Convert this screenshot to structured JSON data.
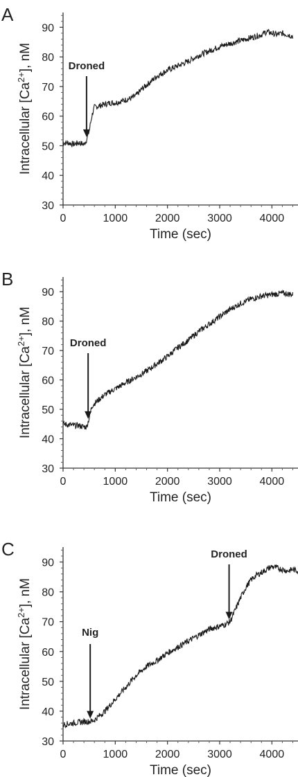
{
  "chart_data": [
    {
      "type": "line",
      "panel_label": "A",
      "xlabel": "Time (sec)",
      "ylabel": "Intracellular [Ca²⁺], nM",
      "xlim": [
        0,
        4500
      ],
      "ylim": [
        30,
        95
      ],
      "x_ticks": [
        0,
        1000,
        2000,
        3000,
        4000
      ],
      "y_ticks": [
        30,
        40,
        50,
        60,
        70,
        80,
        90
      ],
      "series": [
        {
          "x": [
            0,
            100,
            200,
            300,
            400,
            450,
            500,
            550,
            600,
            700,
            800,
            900,
            1000,
            1100,
            1200,
            1300,
            1400,
            1500,
            1600,
            1700,
            1800,
            2000,
            2200,
            2400,
            2600,
            2800,
            3000,
            3200,
            3400,
            3600,
            3800,
            3900,
            4000,
            4100,
            4200,
            4300,
            4400
          ],
          "values": [
            51,
            51,
            50.5,
            51,
            50.5,
            52,
            55,
            60,
            63,
            63.5,
            64,
            64.5,
            64.5,
            65,
            65.5,
            66,
            67,
            69,
            70.5,
            72,
            73.5,
            75.5,
            77,
            78.5,
            80.5,
            82,
            83.5,
            84.5,
            85.5,
            86.5,
            87.5,
            88.5,
            88,
            87.5,
            88,
            87.5,
            87
          ]
        }
      ],
      "grid": false,
      "annotations": [
        {
          "text": "Droned",
          "x": 450
        }
      ]
    },
    {
      "type": "line",
      "panel_label": "B",
      "xlabel": "Time (sec)",
      "ylabel": "Intracellular [Ca²⁺], nM",
      "xlim": [
        0,
        4500
      ],
      "ylim": [
        30,
        95
      ],
      "x_ticks": [
        0,
        1000,
        2000,
        3000,
        4000
      ],
      "y_ticks": [
        30,
        40,
        50,
        60,
        70,
        80,
        90
      ],
      "series": [
        {
          "x": [
            0,
            100,
            200,
            300,
            400,
            450,
            500,
            550,
            600,
            700,
            800,
            1000,
            1200,
            1400,
            1600,
            1800,
            2000,
            2200,
            2400,
            2600,
            2800,
            3000,
            3200,
            3400,
            3600,
            3800,
            4000,
            4200,
            4400
          ],
          "values": [
            45,
            44.8,
            44.5,
            44.5,
            44,
            44,
            47,
            51,
            52,
            53.5,
            55,
            57,
            59,
            61,
            63,
            65.5,
            68,
            71,
            73.5,
            76.5,
            79,
            81.5,
            84,
            86,
            87.5,
            88.5,
            89,
            89.5,
            89
          ]
        }
      ],
      "grid": false,
      "annotations": [
        {
          "text": "Droned",
          "x": 480
        }
      ]
    },
    {
      "type": "line",
      "panel_label": "C",
      "xlabel": "Time (sec)",
      "ylabel": "Intracellular [Ca²⁺], nM",
      "xlim": [
        0,
        4500
      ],
      "ylim": [
        30,
        95
      ],
      "x_ticks": [
        0,
        1000,
        2000,
        3000,
        4000
      ],
      "y_ticks": [
        30,
        40,
        50,
        60,
        70,
        80,
        90
      ],
      "series": [
        {
          "x": [
            0,
            200,
            400,
            500,
            600,
            800,
            1000,
            1200,
            1400,
            1600,
            1800,
            2000,
            2200,
            2400,
            2600,
            2800,
            3000,
            3100,
            3200,
            3300,
            3400,
            3500,
            3600,
            3700,
            3800,
            3900,
            4000,
            4100,
            4200,
            4300,
            4400,
            4500
          ],
          "values": [
            35.5,
            36,
            36.5,
            36.5,
            37,
            40,
            44,
            48,
            52,
            55,
            57,
            59.5,
            61.5,
            63.5,
            65.5,
            67.5,
            68.5,
            69,
            70,
            74,
            78,
            81.5,
            84,
            85.5,
            86.5,
            87.5,
            88.5,
            88,
            87.5,
            87,
            87.5,
            87
          ]
        }
      ],
      "grid": false,
      "annotations": [
        {
          "text": "Nig",
          "x": 520
        },
        {
          "text": "Droned",
          "x": 3180
        }
      ]
    }
  ]
}
